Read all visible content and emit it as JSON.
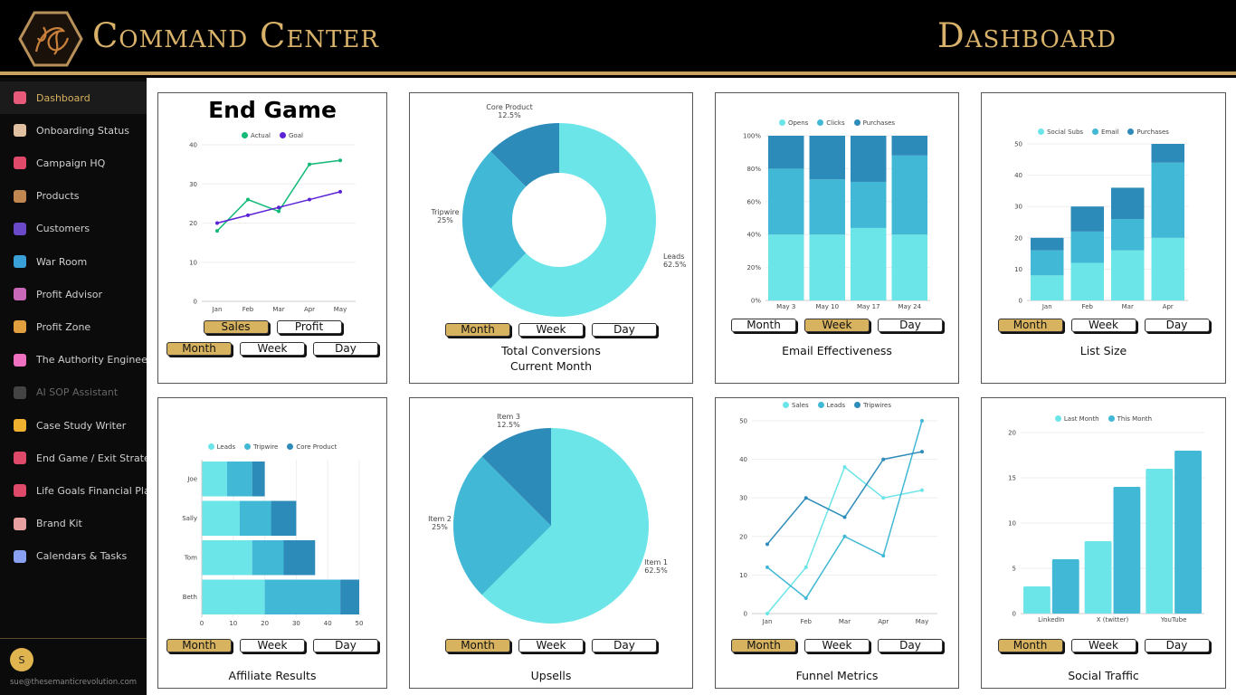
{
  "header": {
    "title": "Command Center",
    "page": "Dashboard"
  },
  "sidebar": {
    "items": [
      {
        "label": "Dashboard",
        "icon": "bar-chart-icon",
        "color": "#e85a7a",
        "active": true
      },
      {
        "label": "Onboarding Status",
        "icon": "clipboard-icon",
        "color": "#e0c0a0"
      },
      {
        "label": "Campaign HQ",
        "icon": "target-icon",
        "color": "#e04a6a"
      },
      {
        "label": "Products",
        "icon": "package-icon",
        "color": "#c08850"
      },
      {
        "label": "Customers",
        "icon": "users-icon",
        "color": "#6a4ac8"
      },
      {
        "label": "War Room",
        "icon": "monitor-icon",
        "color": "#3aa0d8"
      },
      {
        "label": "Profit Advisor",
        "icon": "robot-icon",
        "color": "#c868b8"
      },
      {
        "label": "Profit Zone",
        "icon": "money-bag-icon",
        "color": "#e0a040"
      },
      {
        "label": "The Authority Engineer",
        "icon": "brain-icon",
        "color": "#f070c0"
      },
      {
        "label": "AI SOP Assistant",
        "icon": "notebook-icon",
        "color": "#444",
        "dim": true
      },
      {
        "label": "Case Study Writer",
        "icon": "writing-hand-icon",
        "color": "#f0b030"
      },
      {
        "label": "End Game / Exit Strategy",
        "icon": "target-icon",
        "color": "#e04a6a"
      },
      {
        "label": "Life Goals Financial Plann",
        "icon": "target-icon",
        "color": "#e04a6a"
      },
      {
        "label": "Brand Kit",
        "icon": "palette-icon",
        "color": "#e8a0a0"
      },
      {
        "label": "Calendars & Tasks",
        "icon": "calendar-icon",
        "color": "#8aa0f0"
      }
    ],
    "user": {
      "initial": "S",
      "email": "sue@thesemanticrevolution.com"
    }
  },
  "colors": {
    "light": "#6be5e8",
    "mid": "#41b8d5",
    "dark": "#2d8bba",
    "gold": "#d7b25f",
    "actual": "#13b977",
    "goal": "#5b21d6"
  },
  "cards": [
    {
      "title": "End Game",
      "buttons": [
        [
          {
            "label": "Sales",
            "active": true
          },
          {
            "label": "Profit"
          }
        ],
        [
          {
            "label": "Month",
            "active": true
          },
          {
            "label": "Week"
          },
          {
            "label": "Day"
          }
        ]
      ],
      "caption": []
    },
    {
      "buttons": [
        [
          {
            "label": "Month",
            "active": true
          },
          {
            "label": "Week"
          },
          {
            "label": "Day"
          }
        ]
      ],
      "caption": [
        "Total Conversions",
        "Current Month"
      ]
    },
    {
      "buttons": [
        [
          {
            "label": "Month"
          },
          {
            "label": "Week",
            "active": true
          },
          {
            "label": "Day"
          }
        ]
      ],
      "caption": [
        "Email Effectiveness"
      ]
    },
    {
      "buttons": [
        [
          {
            "label": "Month",
            "active": true
          },
          {
            "label": "Week"
          },
          {
            "label": "Day"
          }
        ]
      ],
      "caption": [
        "List Size"
      ]
    },
    {
      "buttons": [
        [
          {
            "label": "Month",
            "active": true
          },
          {
            "label": "Week"
          },
          {
            "label": "Day"
          }
        ]
      ],
      "caption": [
        "Affiliate Results"
      ]
    },
    {
      "buttons": [
        [
          {
            "label": "Month",
            "active": true
          },
          {
            "label": "Week"
          },
          {
            "label": "Day"
          }
        ]
      ],
      "caption": [
        "Upsells"
      ]
    },
    {
      "buttons": [
        [
          {
            "label": "Month",
            "active": true
          },
          {
            "label": "Week"
          },
          {
            "label": "Day"
          }
        ]
      ],
      "caption": [
        "Funnel Metrics"
      ]
    },
    {
      "buttons": [
        [
          {
            "label": "Month",
            "active": true
          },
          {
            "label": "Week"
          },
          {
            "label": "Day"
          }
        ]
      ],
      "caption": [
        "Social Traffic"
      ]
    }
  ],
  "chart_data": [
    {
      "type": "line",
      "categories": [
        "Jan",
        "Feb",
        "Mar",
        "Apr",
        "May"
      ],
      "ylim": [
        0,
        40
      ],
      "yticks": [
        "0",
        "10",
        "20",
        "30",
        "40"
      ],
      "series": [
        {
          "name": "Actual",
          "values": [
            18,
            26,
            23,
            35,
            36
          ],
          "color": "#13b977"
        },
        {
          "name": "Goal",
          "values": [
            20,
            22,
            24,
            26,
            28
          ],
          "color": "#5b21d6"
        }
      ]
    },
    {
      "type": "pie",
      "donut": true,
      "slices": [
        {
          "name": "Leads",
          "value": 62.5,
          "label": "62.5%",
          "color": "#6be5e8"
        },
        {
          "name": "Tripwire",
          "value": 25,
          "label": "25%",
          "color": "#41b8d5"
        },
        {
          "name": "Core Product",
          "value": 12.5,
          "label": "12.5%",
          "color": "#2d8bba"
        }
      ]
    },
    {
      "type": "bar",
      "stacked": true,
      "percent": true,
      "categories": [
        "May 3",
        "May 10",
        "May 17",
        "May 24"
      ],
      "ylim": [
        0,
        100
      ],
      "yticks": [
        "0%",
        "20%",
        "40%",
        "60%",
        "80%",
        "100%"
      ],
      "series": [
        {
          "name": "Opens",
          "values": [
            40,
            40,
            44,
            40
          ],
          "color": "#6be5e8"
        },
        {
          "name": "Clicks",
          "values": [
            40,
            33.5,
            28,
            48
          ],
          "color": "#41b8d5"
        },
        {
          "name": "Purchases",
          "values": [
            20,
            26.5,
            28,
            12
          ],
          "color": "#2d8bba"
        }
      ]
    },
    {
      "type": "bar",
      "stacked": true,
      "categories": [
        "Jan",
        "Feb",
        "Mar",
        "Apr"
      ],
      "ylim": [
        0,
        50
      ],
      "yticks": [
        "0",
        "10",
        "20",
        "30",
        "40",
        "50"
      ],
      "series": [
        {
          "name": "Social Subs",
          "values": [
            8,
            12,
            16,
            20
          ],
          "color": "#6be5e8"
        },
        {
          "name": "Email",
          "values": [
            8,
            10,
            10,
            24
          ],
          "color": "#41b8d5"
        },
        {
          "name": "Purchases",
          "values": [
            4,
            8,
            10,
            6
          ],
          "color": "#2d8bba"
        }
      ]
    },
    {
      "type": "bar",
      "orientation": "horizontal",
      "stacked": true,
      "categories": [
        "Joe",
        "Sally",
        "Tom",
        "Beth"
      ],
      "xlim": [
        0,
        50
      ],
      "xticks": [
        "0",
        "10",
        "20",
        "30",
        "40",
        "50"
      ],
      "series": [
        {
          "name": "Leads",
          "values": [
            8,
            12,
            16,
            20
          ],
          "color": "#6be5e8"
        },
        {
          "name": "Tripwire",
          "values": [
            8,
            10,
            10,
            24
          ],
          "color": "#41b8d5"
        },
        {
          "name": "Core Product",
          "values": [
            4,
            8,
            10,
            6
          ],
          "color": "#2d8bba"
        }
      ]
    },
    {
      "type": "pie",
      "donut": false,
      "slices": [
        {
          "name": "Item 1",
          "value": 62.5,
          "label": "62.5%",
          "color": "#6be5e8"
        },
        {
          "name": "Item 2",
          "value": 25,
          "label": "25%",
          "color": "#41b8d5"
        },
        {
          "name": "Item 3",
          "value": 12.5,
          "label": "12.5%",
          "color": "#2d8bba"
        }
      ]
    },
    {
      "type": "line",
      "categories": [
        "Jan",
        "Feb",
        "Mar",
        "Apr",
        "May"
      ],
      "ylim": [
        0,
        50
      ],
      "yticks": [
        "0",
        "10",
        "20",
        "30",
        "40",
        "50"
      ],
      "series": [
        {
          "name": "Sales",
          "values": [
            0,
            12,
            38,
            30,
            32
          ],
          "color": "#6be5e8"
        },
        {
          "name": "Leads",
          "values": [
            12,
            4,
            20,
            15,
            50
          ],
          "color": "#41b8d5"
        },
        {
          "name": "Tripwires",
          "values": [
            18,
            30,
            25,
            40,
            42
          ],
          "color": "#2d8bba"
        }
      ]
    },
    {
      "type": "bar",
      "grouped": true,
      "categories": [
        "LinkedIn",
        "X (twitter)",
        "YouTube"
      ],
      "ylim": [
        0,
        20
      ],
      "yticks": [
        "0",
        "5",
        "10",
        "15",
        "20"
      ],
      "series": [
        {
          "name": "Last Month",
          "values": [
            3,
            8,
            16
          ],
          "color": "#6be5e8"
        },
        {
          "name": "This Month",
          "values": [
            6,
            14,
            18
          ],
          "color": "#41b8d5"
        }
      ]
    }
  ]
}
